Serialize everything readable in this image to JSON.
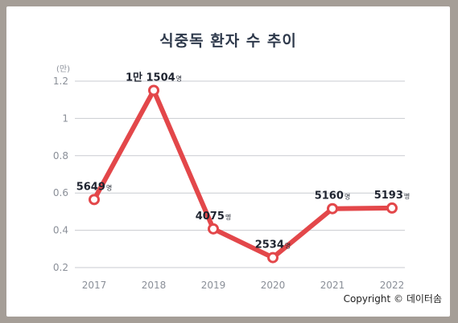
{
  "chart_data": {
    "type": "line",
    "title": "식중독 환자 수 추이",
    "y_unit_label": "(만)",
    "categories": [
      "2017",
      "2018",
      "2019",
      "2020",
      "2021",
      "2022"
    ],
    "values": [
      0.5649,
      1.1504,
      0.4075,
      0.2534,
      0.516,
      0.5193
    ],
    "data_labels": [
      {
        "num": "5649",
        "unit": "명"
      },
      {
        "num": "1만 1504",
        "unit": "명"
      },
      {
        "num": "4075",
        "unit": "명"
      },
      {
        "num": "2534",
        "unit": "명"
      },
      {
        "num": "5160",
        "unit": "명"
      },
      {
        "num": "5193",
        "unit": "명"
      }
    ],
    "yticks": [
      0.2,
      0.4,
      0.6,
      0.8,
      1,
      1.2
    ],
    "ylim": [
      0.2,
      1.2
    ],
    "grid": true,
    "line_color": "#e3474a"
  },
  "footer": {
    "copyright": "Copyright © 데이터솜"
  }
}
